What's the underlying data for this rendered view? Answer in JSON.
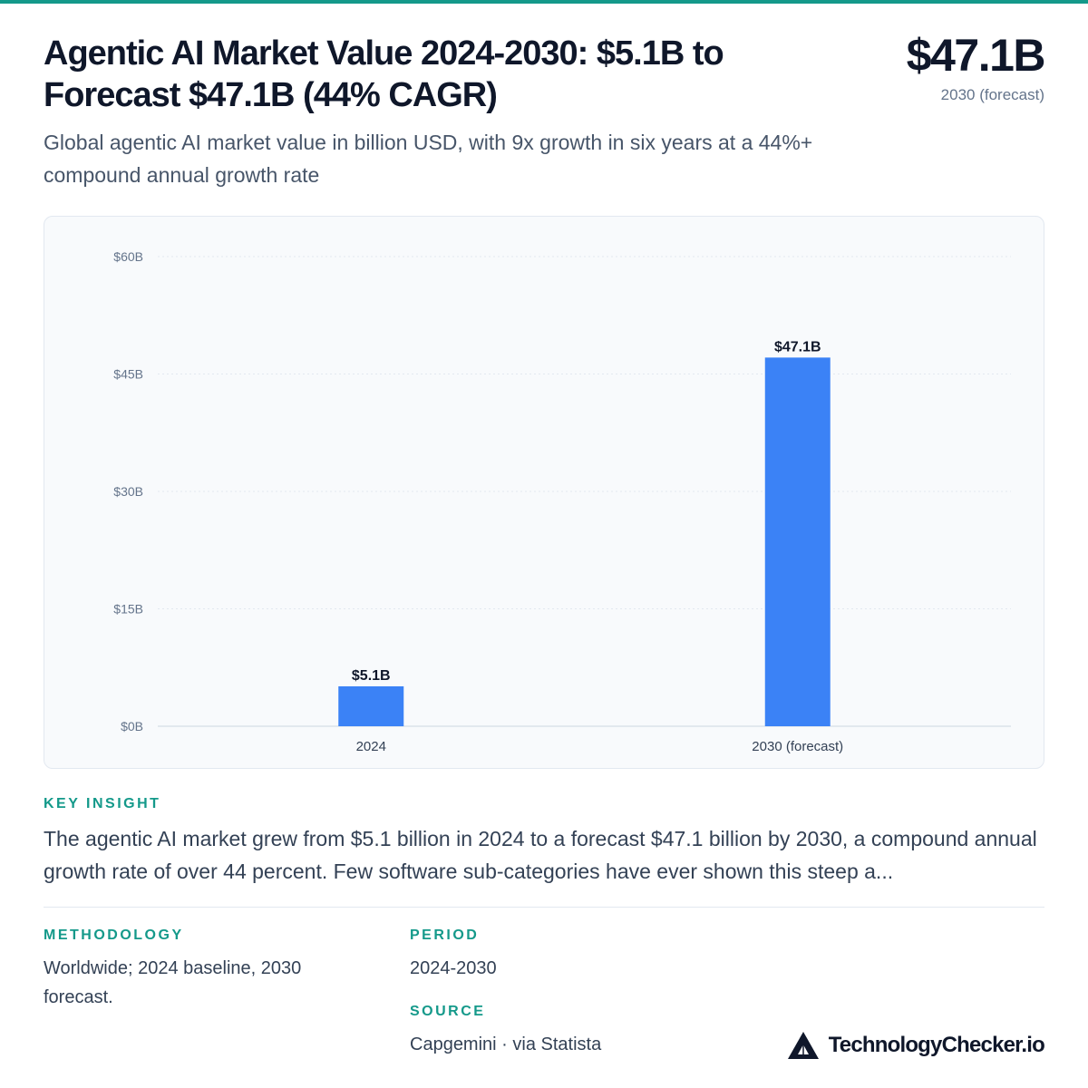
{
  "header": {
    "title": "Agentic AI Market Value 2024-2030: $5.1B to Forecast $47.1B (44% CAGR)",
    "subtitle": "Global agentic AI market value in billion USD, with 9x growth in six years at a 44%+ compound annual growth rate",
    "headline_value": "$47.1B",
    "headline_caption": "2030 (forecast)"
  },
  "chart_data": {
    "type": "bar",
    "categories": [
      "2024",
      "2030 (forecast)"
    ],
    "values": [
      5.1,
      47.1
    ],
    "value_labels": [
      "$5.1B",
      "$47.1B"
    ],
    "yticks": [
      0,
      15,
      30,
      45,
      60
    ],
    "ytick_labels": [
      "$0B",
      "$15B",
      "$30B",
      "$45B",
      "$60B"
    ],
    "ylim": [
      0,
      60
    ],
    "grid": true,
    "bar_color": "#3b82f6"
  },
  "insight": {
    "label": "KEY INSIGHT",
    "text": "The agentic AI market grew from $5.1 billion in 2024 to a forecast $47.1 billion by 2030, a compound annual growth rate of over 44 percent. Few software sub-categories have ever shown this steep a..."
  },
  "footer": {
    "methodology_label": "METHODOLOGY",
    "methodology_text": "Worldwide; 2024 baseline, 2030 forecast.",
    "period_label": "PERIOD",
    "period_text": "2024-2030",
    "source_label": "SOURCE",
    "source_text": "Capgemini · via Statista",
    "brand": "TechnologyChecker.io",
    "brand_icon": "triangle-logo-icon"
  },
  "colors": {
    "accent": "#14998a",
    "bar": "#3b82f6",
    "text": "#0f172a"
  }
}
